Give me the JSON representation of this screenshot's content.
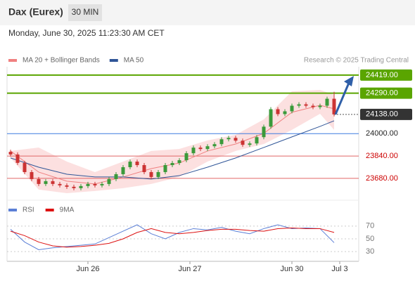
{
  "chart_data": {
    "type": "candlestick",
    "title": "Dax (Eurex)",
    "timeframe": "30 MIN",
    "subtitle": "Monday, June 30, 2025 11:23:30 AM CET",
    "source": "Research © 2025 Trading Central",
    "x": [
      0,
      1,
      2,
      3,
      4,
      5,
      6,
      7,
      8,
      9,
      10,
      11,
      12,
      13,
      14,
      15,
      16,
      17,
      18,
      19,
      20,
      21,
      22,
      23,
      24,
      25,
      26,
      27,
      28,
      29,
      30,
      31,
      32,
      33,
      34,
      35,
      36,
      37,
      38,
      39,
      40,
      41,
      42,
      43,
      44,
      45,
      46
    ],
    "open": [
      23870,
      23851,
      23791,
      23725,
      23675,
      23640,
      23660,
      23640,
      23630,
      23620,
      23610,
      23625,
      23640,
      23630,
      23640,
      23675,
      23710,
      23760,
      23800,
      23775,
      23725,
      23690,
      23725,
      23775,
      23790,
      23810,
      23860,
      23900,
      23890,
      23910,
      23925,
      23960,
      23970,
      23950,
      23920,
      23930,
      23975,
      24050,
      24175,
      24140,
      24160,
      24200,
      24210,
      24200,
      24190,
      24200,
      24250
    ],
    "high": [
      23885,
      23866,
      23806,
      23740,
      23690,
      23675,
      23675,
      23655,
      23645,
      23635,
      23640,
      23655,
      23655,
      23655,
      23690,
      23725,
      23775,
      23815,
      23815,
      23790,
      23740,
      23740,
      23790,
      23805,
      23825,
      23875,
      23915,
      23915,
      23925,
      23940,
      23975,
      23985,
      23985,
      23965,
      23945,
      23990,
      24065,
      24190,
      24190,
      24175,
      24215,
      24225,
      24225,
      24215,
      24215,
      24265,
      24300
    ],
    "low": [
      23836,
      23776,
      23710,
      23660,
      23625,
      23625,
      23625,
      23615,
      23605,
      23595,
      23595,
      23610,
      23615,
      23615,
      23625,
      23660,
      23695,
      23745,
      23760,
      23710,
      23675,
      23675,
      23710,
      23760,
      23775,
      23795,
      23845,
      23875,
      23875,
      23895,
      23910,
      23945,
      23935,
      23905,
      23905,
      23915,
      23960,
      24035,
      24125,
      24125,
      24145,
      24185,
      24185,
      24175,
      24175,
      24185,
      24123
    ],
    "close": [
      23851,
      23791,
      23725,
      23675,
      23640,
      23660,
      23640,
      23630,
      23620,
      23610,
      23625,
      23640,
      23630,
      23640,
      23675,
      23710,
      23760,
      23800,
      23775,
      23725,
      23690,
      23725,
      23775,
      23790,
      23810,
      23860,
      23900,
      23890,
      23910,
      23925,
      23960,
      23970,
      23950,
      23920,
      23930,
      23975,
      24050,
      24175,
      24140,
      24160,
      24200,
      24210,
      24200,
      24190,
      24200,
      24250,
      24138
    ],
    "up_color": "#3a9a3a",
    "down_color": "#cc3333",
    "xlim": [
      -0.5,
      49.5
    ],
    "xticks": [
      {
        "value": 11,
        "label": "Jun 26"
      },
      {
        "value": 25.5,
        "label": "Jun 27"
      },
      {
        "value": 40,
        "label": "Jun 30"
      },
      {
        "value": 46.8,
        "label": "Jul 3"
      }
    ],
    "ylim": [
      23574,
      24479
    ],
    "series": [
      {
        "name": "MA 20 + Bollinger Bands",
        "color": "#f08080",
        "band_color": "#fbd5d5",
        "x": [
          0,
          4,
          8,
          12,
          16,
          20,
          24,
          28,
          32,
          36,
          40,
          44,
          46
        ],
        "values": [
          23876,
          23725,
          23660,
          23640,
          23690,
          23750,
          23790,
          23876,
          23926,
          24002,
          24153,
          24203,
          24178
        ],
        "upper": [
          23876,
          23901,
          23800,
          23725,
          23800,
          23876,
          23891,
          23952,
          23992,
          24102,
          24303,
          24313,
          24278
        ],
        "lower": [
          23826,
          23600,
          23574,
          23590,
          23610,
          23640,
          23690,
          23800,
          23876,
          23926,
          24027,
          24142,
          24027
        ]
      },
      {
        "name": "MA 50",
        "color": "#2f5597",
        "x": [
          0,
          4,
          8,
          12,
          16,
          20,
          24,
          28,
          32,
          36,
          40,
          44,
          46
        ],
        "values": [
          23826,
          23760,
          23710,
          23690,
          23690,
          23675,
          23700,
          23760,
          23826,
          23901,
          23977,
          24052,
          24092
        ]
      }
    ],
    "levels": {
      "values": [
        24419,
        24290,
        24138,
        24000,
        23840,
        23680
      ],
      "value_labels": [
        "24419.00",
        "24290.00",
        "24138.00",
        "24000.00",
        "23840.00",
        "23680.00"
      ],
      "colors": [
        "#5aa500",
        "#5aa500",
        "#333333",
        "#3d7be0",
        "#e06666",
        "#e06666"
      ],
      "boxed": [
        true,
        true,
        true,
        false,
        false,
        false
      ],
      "text_colors": [
        "#ffffff",
        "#ffffff",
        "#ffffff",
        "#222222",
        "#cc0000",
        "#cc0000"
      ]
    },
    "rsi": {
      "ylim": [
        17,
        105
      ],
      "yticks": [
        30,
        50,
        70
      ],
      "series": [
        {
          "name": "RSI",
          "color": "#5b7fd6",
          "x": [
            0,
            2,
            4,
            6,
            8,
            10,
            12,
            14,
            16,
            18,
            20,
            22,
            24,
            26,
            28,
            30,
            32,
            34,
            36,
            38,
            40,
            42,
            44,
            46
          ],
          "values": [
            65,
            45,
            33,
            36,
            38,
            40,
            42,
            52,
            62,
            72,
            58,
            50,
            60,
            66,
            64,
            68,
            62,
            58,
            66,
            72,
            66,
            67,
            66,
            44
          ]
        },
        {
          "name": "9MA",
          "color": "#dd1111",
          "x": [
            0,
            2,
            4,
            6,
            8,
            10,
            12,
            14,
            16,
            18,
            20,
            22,
            24,
            26,
            28,
            30,
            32,
            34,
            36,
            38,
            40,
            42,
            44,
            46
          ],
          "values": [
            62,
            55,
            45,
            39,
            37,
            38,
            40,
            43,
            50,
            60,
            66,
            60,
            58,
            60,
            63,
            65,
            65,
            63,
            62,
            66,
            67,
            66,
            66,
            60
          ]
        }
      ]
    }
  }
}
